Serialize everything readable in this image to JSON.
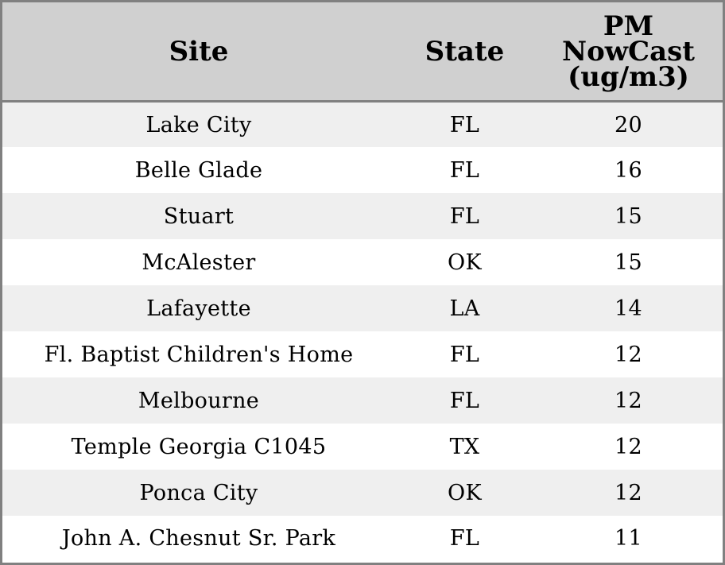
{
  "chart_data": {
    "type": "table",
    "columns": [
      "Site",
      "State",
      "PM NowCast (ug/m3)"
    ],
    "header_lines": {
      "site": "Site",
      "state": "State",
      "pm": [
        "PM",
        "NowCast",
        "(ug/m3)"
      ]
    },
    "rows": [
      {
        "site": "Lake City",
        "state": "FL",
        "pm": "20"
      },
      {
        "site": "Belle Glade",
        "state": "FL",
        "pm": "16"
      },
      {
        "site": "Stuart",
        "state": "FL",
        "pm": "15"
      },
      {
        "site": "McAlester",
        "state": "OK",
        "pm": "15"
      },
      {
        "site": "Lafayette",
        "state": "LA",
        "pm": "14"
      },
      {
        "site": "Fl. Baptist Children's Home",
        "state": "FL",
        "pm": "12"
      },
      {
        "site": "Melbourne",
        "state": "FL",
        "pm": "12"
      },
      {
        "site": "Temple Georgia C1045",
        "state": "TX",
        "pm": "12"
      },
      {
        "site": "Ponca City",
        "state": "OK",
        "pm": "12"
      },
      {
        "site": "John A. Chesnut Sr. Park",
        "state": "FL",
        "pm": "11"
      }
    ],
    "colors": {
      "header_bg": "#d0d0d0",
      "row_alt_bg": "#efefef",
      "row_bg": "#ffffff",
      "border": "#808080"
    }
  }
}
